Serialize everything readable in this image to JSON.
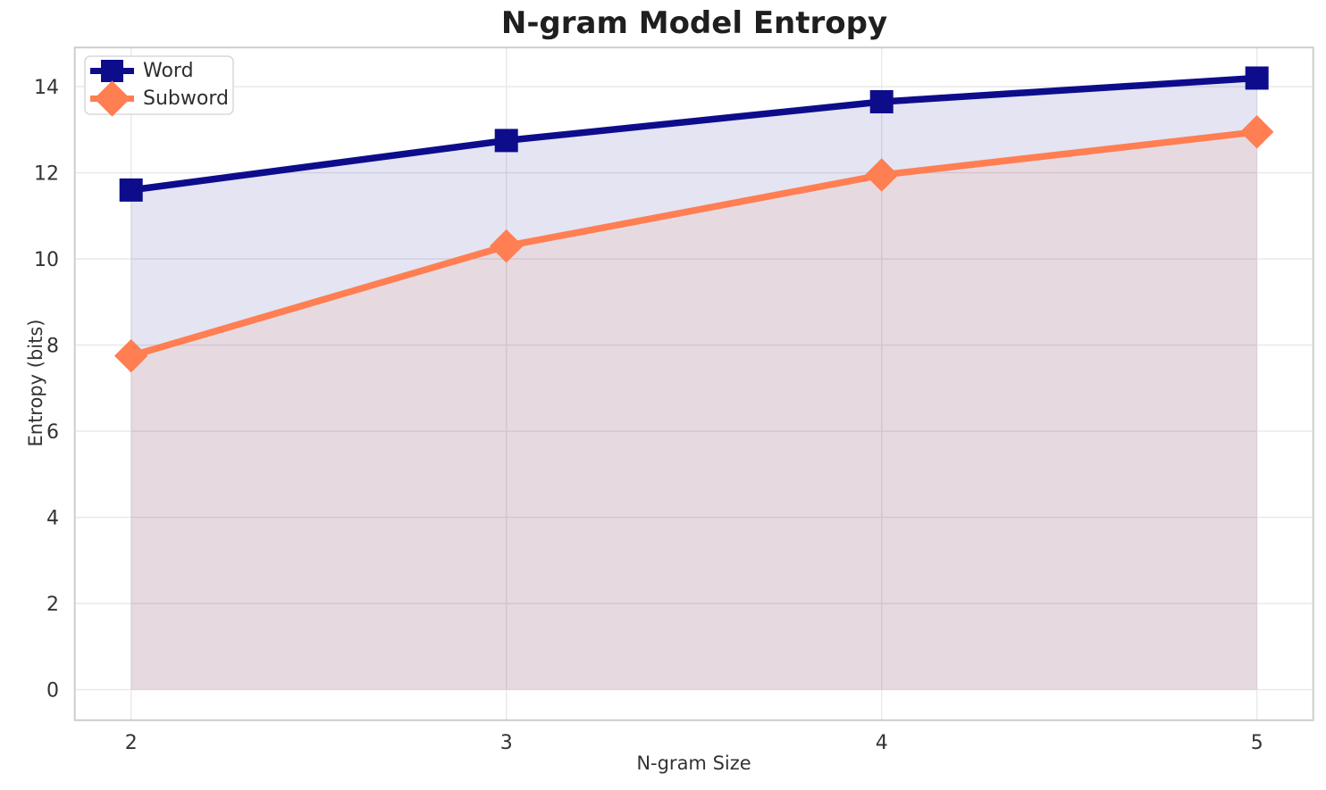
{
  "chart_data": {
    "type": "line",
    "title": "N-gram Model Entropy",
    "xlabel": "N-gram Size",
    "ylabel": "Entropy (bits)",
    "x": [
      2,
      3,
      4,
      5
    ],
    "series": [
      {
        "name": "Word",
        "values": [
          11.6,
          12.75,
          13.65,
          14.2
        ],
        "color": "#0d0d8c",
        "marker": "square"
      },
      {
        "name": "Subword",
        "values": [
          7.75,
          10.3,
          11.95,
          12.95
        ],
        "color": "#ff7e52",
        "marker": "diamond"
      }
    ],
    "xticks": [
      "2",
      "3",
      "4",
      "5"
    ],
    "xtick_values": [
      2,
      3,
      4,
      5
    ],
    "yticks": [
      "0",
      "2",
      "4",
      "6",
      "8",
      "10",
      "12",
      "14"
    ],
    "ytick_values": [
      0,
      2,
      4,
      6,
      8,
      10,
      12,
      14
    ],
    "xlim": [
      1.85,
      5.15
    ],
    "ylim": [
      -0.71,
      14.91
    ],
    "grid": true,
    "area_fill": true,
    "area_fill_baseline": 0,
    "area_fill_opacity": 0.11,
    "legend": {
      "position": "upper-left",
      "labels": [
        "Word",
        "Subword"
      ]
    }
  }
}
